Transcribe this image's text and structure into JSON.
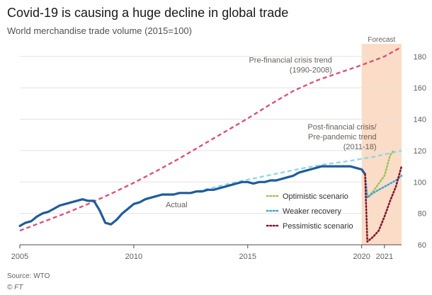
{
  "header": {
    "title": "Covid-19 is causing a huge decline in global trade",
    "subtitle": "World merchandise trade volume (2015=100)"
  },
  "footer": {
    "source": "Source: WTO",
    "credit": "© FT"
  },
  "colors": {
    "actual": "#1f5b9c",
    "pre_crisis": "#e0507a",
    "post_crisis": "#8fd8e6",
    "optimistic": "#9bc65a",
    "weaker": "#3fa7d6",
    "pessimistic": "#7d1630",
    "forecast_band": "#fbdcc6",
    "grid": "#e6e2df",
    "axis_text": "#66605c"
  },
  "chart_data": {
    "type": "line",
    "title": "Covid-19 is causing a huge decline in global trade",
    "subtitle": "World merchandise trade volume (2015=100)",
    "xlabel": "",
    "ylabel": "",
    "xlim": [
      2005,
      2021.75
    ],
    "ylim": [
      60,
      188
    ],
    "x_ticks": [
      {
        "value": 2005,
        "label": "2005"
      },
      {
        "value": 2010,
        "label": "2010"
      },
      {
        "value": 2015,
        "label": "2015"
      },
      {
        "value": 2020,
        "label": "2020"
      },
      {
        "value": 2021,
        "label": "2021"
      }
    ],
    "y_ticks": [
      60,
      80,
      100,
      120,
      140,
      160,
      180
    ],
    "y_axis_side": "right",
    "grid": true,
    "forecast_band": {
      "x_start": 2020,
      "x_end": 2021.75,
      "label": "Forecast"
    },
    "series": [
      {
        "name": "Actual",
        "style": "solid",
        "color_key": "actual",
        "x": [
          2005.0,
          2005.25,
          2005.5,
          2005.75,
          2006.0,
          2006.25,
          2006.5,
          2006.75,
          2007.0,
          2007.25,
          2007.5,
          2007.75,
          2008.0,
          2008.25,
          2008.5,
          2008.75,
          2009.0,
          2009.25,
          2009.5,
          2009.75,
          2010.0,
          2010.25,
          2010.5,
          2010.75,
          2011.0,
          2011.25,
          2011.5,
          2011.75,
          2012.0,
          2012.25,
          2012.5,
          2012.75,
          2013.0,
          2013.25,
          2013.5,
          2013.75,
          2014.0,
          2014.25,
          2014.5,
          2014.75,
          2015.0,
          2015.25,
          2015.5,
          2015.75,
          2016.0,
          2016.25,
          2016.5,
          2016.75,
          2017.0,
          2017.25,
          2017.5,
          2017.75,
          2018.0,
          2018.25,
          2018.5,
          2018.75,
          2019.0,
          2019.25,
          2019.5,
          2019.75,
          2020.0,
          2020.15
        ],
        "y": [
          72,
          74,
          75,
          78,
          80,
          81,
          83,
          85,
          86,
          87,
          88,
          89,
          88,
          88,
          82,
          74,
          73,
          76,
          80,
          83,
          86,
          87,
          89,
          90,
          91,
          92,
          92,
          92,
          93,
          93,
          93,
          94,
          94,
          95,
          95,
          96,
          97,
          98,
          99,
          100,
          100,
          99,
          100,
          100,
          101,
          101,
          102,
          103,
          104,
          106,
          107,
          108,
          109,
          110,
          110,
          110,
          110,
          110,
          110,
          109,
          108,
          105
        ]
      },
      {
        "name": "Pre-financial crisis trend (1990-2008)",
        "style": "dashed",
        "color_key": "pre_crisis",
        "x": [
          2005.0,
          2006.0,
          2007.0,
          2008.0,
          2009.0,
          2010.0,
          2011.0,
          2012.0,
          2013.0,
          2014.0,
          2015.0,
          2016.0,
          2017.0,
          2018.0,
          2019.0,
          2020.0,
          2021.0,
          2021.75
        ],
        "y": [
          69,
          74.5,
          80,
          86,
          92.5,
          99.5,
          107,
          115,
          123.5,
          132,
          140.5,
          149.5,
          158,
          164.5,
          169.5,
          174.5,
          180,
          186
        ]
      },
      {
        "name": "Post-financial crisis/ Pre-pandemic trend (2011-18)",
        "style": "dashed",
        "color_key": "post_crisis",
        "x": [
          2012.5,
          2013.5,
          2014.5,
          2015.5,
          2016.5,
          2017.5,
          2018.5,
          2019.5,
          2020.5,
          2021.75
        ],
        "y": [
          93,
          96.5,
          100,
          103,
          106,
          109,
          111.5,
          113.5,
          116,
          120
        ]
      },
      {
        "name": "Optimistic scenario",
        "style": "dotted",
        "color_key": "optimistic",
        "x": [
          2020.15,
          2020.25,
          2020.5,
          2020.75,
          2021.0,
          2021.25,
          2021.4
        ],
        "y": [
          105,
          90,
          94,
          99,
          104,
          117,
          120
        ]
      },
      {
        "name": "Weaker recovery",
        "style": "dotted",
        "color_key": "weaker",
        "x": [
          2020.15,
          2020.25,
          2020.5,
          2020.75,
          2021.0,
          2021.25,
          2021.5,
          2021.75
        ],
        "y": [
          105,
          90,
          93,
          95,
          97,
          99,
          101,
          104
        ]
      },
      {
        "name": "Pessimistic scenario",
        "style": "dotted",
        "color_key": "pessimistic",
        "x": [
          2020.15,
          2020.25,
          2020.5,
          2020.75,
          2021.0,
          2021.25,
          2021.5,
          2021.75
        ],
        "y": [
          105,
          62,
          65,
          69,
          78,
          88,
          97,
          110
        ]
      }
    ],
    "annotations": [
      {
        "id": "pre-crisis",
        "lines": [
          "Pre-financial crisis trend",
          "(1990-2008)"
        ],
        "x": 2018.7,
        "y": 176,
        "anchor": "end",
        "color_key": "axis_text"
      },
      {
        "id": "post-crisis",
        "lines": [
          "Post-financial crisis/",
          "Pre-pandemic trend",
          "(2011-18)"
        ],
        "x": 2020.65,
        "y": 133.5,
        "anchor": "end",
        "color_key": "axis_text"
      },
      {
        "id": "actual",
        "lines": [
          "Actual"
        ],
        "x": 2011.4,
        "y": 84,
        "anchor": "start",
        "color_key": "axis_text"
      }
    ],
    "legend": {
      "position": "bottom-right",
      "items": [
        {
          "label": "Optimistic scenario",
          "color_key": "optimistic"
        },
        {
          "label": "Weaker recovery",
          "color_key": "weaker"
        },
        {
          "label": "Pessimistic scenario",
          "color_key": "pessimistic"
        }
      ]
    }
  }
}
